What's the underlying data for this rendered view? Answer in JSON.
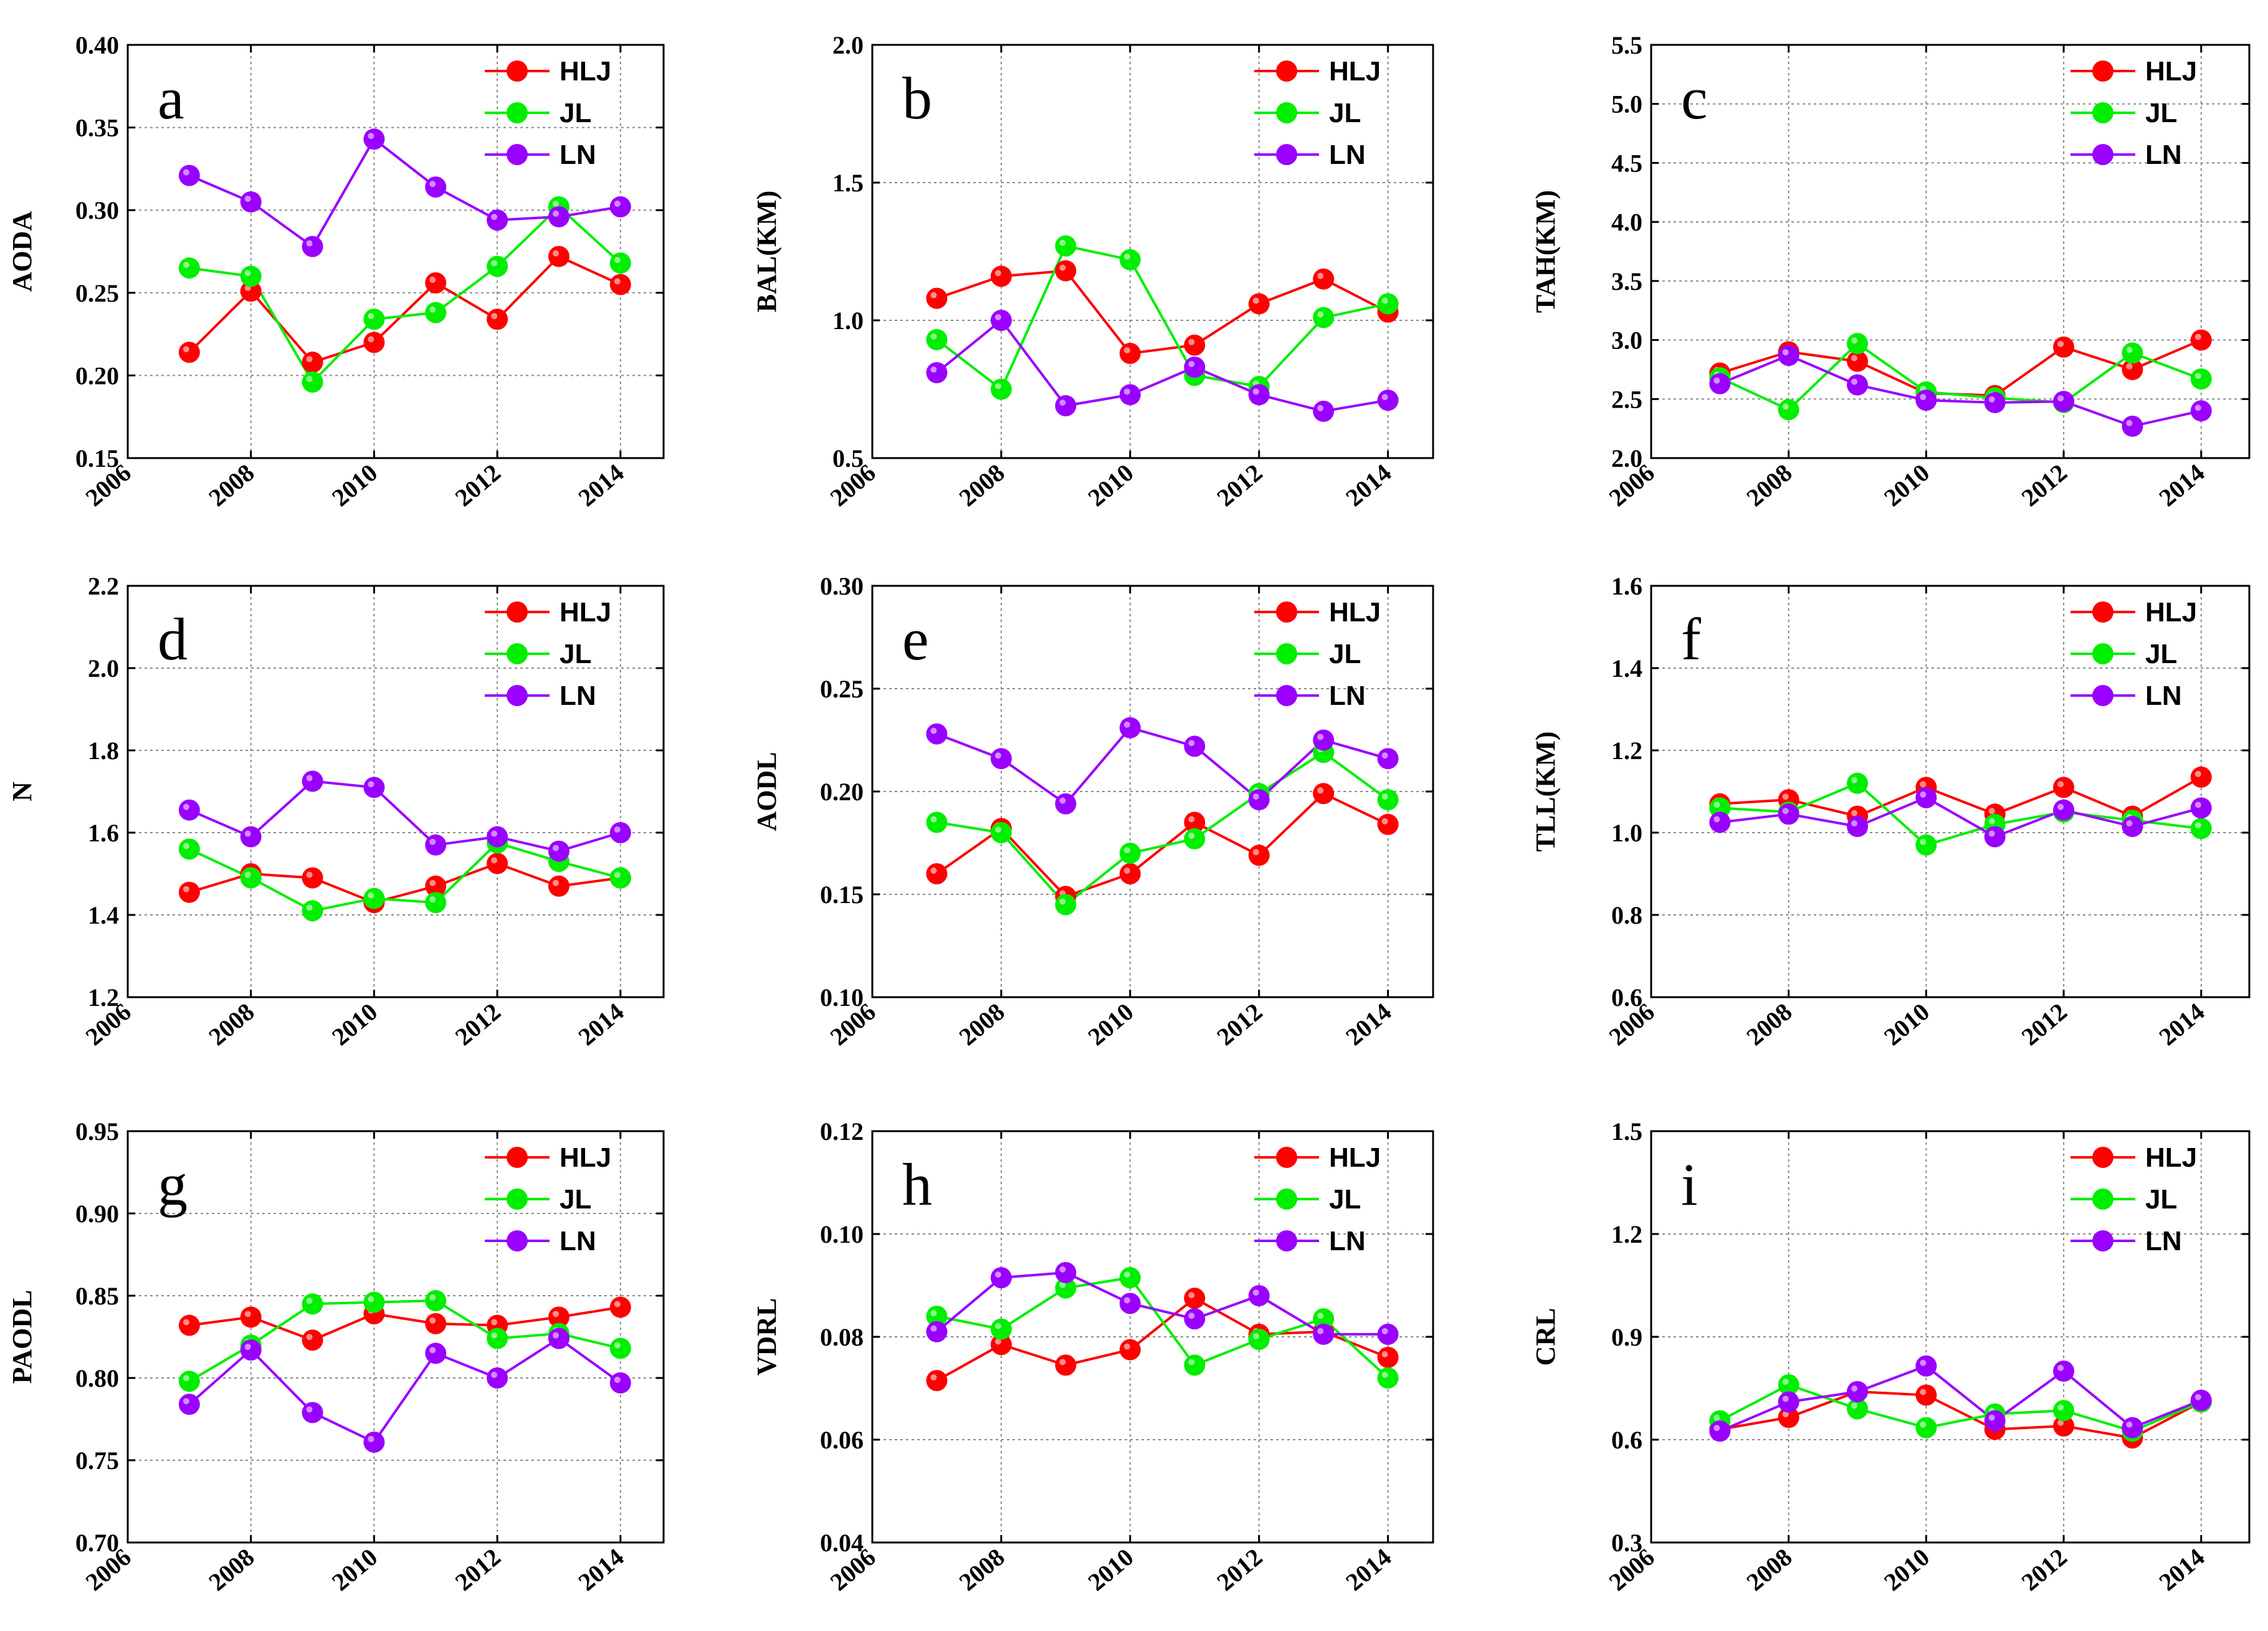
{
  "colors": {
    "HLJ": "#ff0000",
    "JL": "#00ee00",
    "LN": "#9a00ff",
    "grid": "#888888",
    "axis": "#000000"
  },
  "chart_data": [
    {
      "type": "line",
      "panel": "a",
      "ylabel": "AODA",
      "xlabel": "",
      "x": [
        2007,
        2008,
        2009,
        2010,
        2011,
        2012,
        2013,
        2014
      ],
      "xlim": [
        2006,
        2014.7
      ],
      "xticks": [
        "2006",
        "2008",
        "2010",
        "2012",
        "2014"
      ],
      "ylim": [
        0.15,
        0.4
      ],
      "yticks": [
        "0.15",
        "0.20",
        "0.25",
        "0.30",
        "0.35",
        "0.40"
      ],
      "grid": true,
      "legend": "top-right",
      "series": [
        {
          "name": "HLJ",
          "values": [
            0.214,
            0.251,
            0.208,
            0.22,
            0.256,
            0.234,
            0.272,
            0.255
          ]
        },
        {
          "name": "JL",
          "values": [
            0.265,
            0.26,
            0.196,
            0.234,
            0.238,
            0.266,
            0.302,
            0.268
          ]
        },
        {
          "name": "LN",
          "values": [
            0.321,
            0.305,
            0.278,
            0.343,
            0.314,
            0.294,
            0.296,
            0.302
          ]
        }
      ]
    },
    {
      "type": "line",
      "panel": "b",
      "ylabel": "BAL(KM)",
      "xlabel": "",
      "x": [
        2007,
        2008,
        2009,
        2010,
        2011,
        2012,
        2013,
        2014
      ],
      "xlim": [
        2006,
        2014.7
      ],
      "xticks": [
        "2006",
        "2008",
        "2010",
        "2012",
        "2014"
      ],
      "ylim": [
        0.5,
        2.0
      ],
      "yticks": [
        "0.5",
        "1.0",
        "1.5",
        "2.0"
      ],
      "grid": true,
      "legend": "top-right",
      "series": [
        {
          "name": "HLJ",
          "values": [
            1.08,
            1.16,
            1.18,
            0.88,
            0.91,
            1.06,
            1.15,
            1.03
          ]
        },
        {
          "name": "JL",
          "values": [
            0.93,
            0.75,
            1.27,
            1.22,
            0.8,
            0.76,
            1.01,
            1.06
          ]
        },
        {
          "name": "LN",
          "values": [
            0.81,
            1.0,
            0.69,
            0.73,
            0.83,
            0.73,
            0.67,
            0.71
          ]
        }
      ]
    },
    {
      "type": "line",
      "panel": "c",
      "ylabel": "TAH(KM)",
      "xlabel": "",
      "x": [
        2007,
        2008,
        2009,
        2010,
        2011,
        2012,
        2013,
        2014
      ],
      "xlim": [
        2006,
        2014.7
      ],
      "xticks": [
        "2006",
        "2008",
        "2010",
        "2012",
        "2014"
      ],
      "ylim": [
        2.0,
        5.5
      ],
      "yticks": [
        "2.0",
        "2.5",
        "3.0",
        "3.5",
        "4.0",
        "4.5",
        "5.0",
        "5.5"
      ],
      "grid": true,
      "legend": "top-right",
      "series": [
        {
          "name": "HLJ",
          "values": [
            2.72,
            2.9,
            2.82,
            2.55,
            2.53,
            2.94,
            2.75,
            3.0
          ]
        },
        {
          "name": "JL",
          "values": [
            2.68,
            2.41,
            2.97,
            2.56,
            2.51,
            2.47,
            2.89,
            2.67
          ]
        },
        {
          "name": "LN",
          "values": [
            2.63,
            2.87,
            2.62,
            2.49,
            2.47,
            2.48,
            2.27,
            2.4
          ]
        }
      ]
    },
    {
      "type": "line",
      "panel": "d",
      "ylabel": "N",
      "xlabel": "",
      "x": [
        2007,
        2008,
        2009,
        2010,
        2011,
        2012,
        2013,
        2014
      ],
      "xlim": [
        2006,
        2014.7
      ],
      "xticks": [
        "2006",
        "2008",
        "2010",
        "2012",
        "2014"
      ],
      "ylim": [
        1.2,
        2.2
      ],
      "yticks": [
        "1.2",
        "1.4",
        "1.6",
        "1.8",
        "2.0",
        "2.2"
      ],
      "grid": true,
      "legend": "top-right",
      "series": [
        {
          "name": "HLJ",
          "values": [
            1.455,
            1.5,
            1.49,
            1.43,
            1.47,
            1.525,
            1.47,
            1.49
          ]
        },
        {
          "name": "JL",
          "values": [
            1.56,
            1.49,
            1.41,
            1.44,
            1.43,
            1.575,
            1.53,
            1.49
          ]
        },
        {
          "name": "LN",
          "values": [
            1.655,
            1.59,
            1.725,
            1.71,
            1.57,
            1.59,
            1.555,
            1.6
          ]
        }
      ]
    },
    {
      "type": "line",
      "panel": "e",
      "ylabel": "AODL",
      "xlabel": "",
      "x": [
        2007,
        2008,
        2009,
        2010,
        2011,
        2012,
        2013,
        2014
      ],
      "xlim": [
        2006,
        2014.7
      ],
      "xticks": [
        "2006",
        "2008",
        "2010",
        "2012",
        "2014"
      ],
      "ylim": [
        0.1,
        0.3
      ],
      "yticks": [
        "0.10",
        "0.15",
        "0.20",
        "0.25",
        "0.30"
      ],
      "grid": true,
      "legend": "top-right",
      "series": [
        {
          "name": "HLJ",
          "values": [
            0.16,
            0.182,
            0.149,
            0.16,
            0.185,
            0.169,
            0.199,
            0.184
          ]
        },
        {
          "name": "JL",
          "values": [
            0.185,
            0.18,
            0.145,
            0.17,
            0.177,
            0.199,
            0.219,
            0.196
          ]
        },
        {
          "name": "LN",
          "values": [
            0.228,
            0.216,
            0.194,
            0.231,
            0.222,
            0.196,
            0.225,
            0.216
          ]
        }
      ]
    },
    {
      "type": "line",
      "panel": "f",
      "ylabel": "TLL(KM)",
      "xlabel": "",
      "x": [
        2007,
        2008,
        2009,
        2010,
        2011,
        2012,
        2013,
        2014
      ],
      "xlim": [
        2006,
        2014.7
      ],
      "xticks": [
        "2006",
        "2008",
        "2010",
        "2012",
        "2014"
      ],
      "ylim": [
        0.6,
        1.6
      ],
      "yticks": [
        "0.6",
        "0.8",
        "1.0",
        "1.2",
        "1.4",
        "1.6"
      ],
      "grid": true,
      "legend": "top-right",
      "series": [
        {
          "name": "HLJ",
          "values": [
            1.07,
            1.08,
            1.04,
            1.11,
            1.045,
            1.11,
            1.04,
            1.135
          ]
        },
        {
          "name": "JL",
          "values": [
            1.06,
            1.05,
            1.12,
            0.97,
            1.02,
            1.05,
            1.03,
            1.01
          ]
        },
        {
          "name": "LN",
          "values": [
            1.025,
            1.045,
            1.015,
            1.085,
            0.99,
            1.055,
            1.015,
            1.06
          ]
        }
      ]
    },
    {
      "type": "line",
      "panel": "g",
      "ylabel": "PAODL",
      "xlabel": "",
      "x": [
        2007,
        2008,
        2009,
        2010,
        2011,
        2012,
        2013,
        2014
      ],
      "xlim": [
        2006,
        2014.7
      ],
      "xticks": [
        "2006",
        "2008",
        "2010",
        "2012",
        "2014"
      ],
      "ylim": [
        0.7,
        0.95
      ],
      "yticks": [
        "0.70",
        "0.75",
        "0.80",
        "0.85",
        "0.90",
        "0.95"
      ],
      "grid": true,
      "legend": "top-right",
      "series": [
        {
          "name": "HLJ",
          "values": [
            0.832,
            0.837,
            0.823,
            0.839,
            0.833,
            0.832,
            0.837,
            0.843
          ]
        },
        {
          "name": "JL",
          "values": [
            0.798,
            0.82,
            0.845,
            0.846,
            0.847,
            0.824,
            0.827,
            0.818
          ]
        },
        {
          "name": "LN",
          "values": [
            0.784,
            0.817,
            0.779,
            0.761,
            0.815,
            0.8,
            0.824,
            0.797
          ]
        }
      ]
    },
    {
      "type": "line",
      "panel": "h",
      "ylabel": "VDRL",
      "xlabel": "",
      "x": [
        2007,
        2008,
        2009,
        2010,
        2011,
        2012,
        2013,
        2014
      ],
      "xlim": [
        2006,
        2014.7
      ],
      "xticks": [
        "2006",
        "2008",
        "2010",
        "2012",
        "2014"
      ],
      "ylim": [
        0.04,
        0.12
      ],
      "yticks": [
        "0.04",
        "0.06",
        "0.08",
        "0.10",
        "0.12"
      ],
      "grid": true,
      "legend": "top-right",
      "series": [
        {
          "name": "HLJ",
          "values": [
            0.0715,
            0.0785,
            0.0745,
            0.0775,
            0.0875,
            0.0805,
            0.081,
            0.076
          ]
        },
        {
          "name": "JL",
          "values": [
            0.084,
            0.0815,
            0.0895,
            0.0915,
            0.0745,
            0.0795,
            0.0835,
            0.072
          ]
        },
        {
          "name": "LN",
          "values": [
            0.081,
            0.0915,
            0.0925,
            0.0865,
            0.0835,
            0.088,
            0.0805,
            0.0805
          ]
        }
      ]
    },
    {
      "type": "line",
      "panel": "i",
      "ylabel": "CRL",
      "xlabel": "",
      "x": [
        2007,
        2008,
        2009,
        2010,
        2011,
        2012,
        2013,
        2014
      ],
      "xlim": [
        2006,
        2014.7
      ],
      "xticks": [
        "2006",
        "2008",
        "2010",
        "2012",
        "2014"
      ],
      "ylim": [
        0.3,
        1.5
      ],
      "yticks": [
        "0.3",
        "0.6",
        "0.9",
        "1.2",
        "1.5"
      ],
      "grid": true,
      "legend": "top-right",
      "series": [
        {
          "name": "HLJ",
          "values": [
            0.63,
            0.665,
            0.74,
            0.73,
            0.63,
            0.64,
            0.605,
            0.71
          ]
        },
        {
          "name": "JL",
          "values": [
            0.655,
            0.76,
            0.69,
            0.635,
            0.675,
            0.685,
            0.625,
            0.71
          ]
        },
        {
          "name": "LN",
          "values": [
            0.625,
            0.71,
            0.74,
            0.815,
            0.655,
            0.8,
            0.635,
            0.715
          ]
        }
      ]
    }
  ]
}
